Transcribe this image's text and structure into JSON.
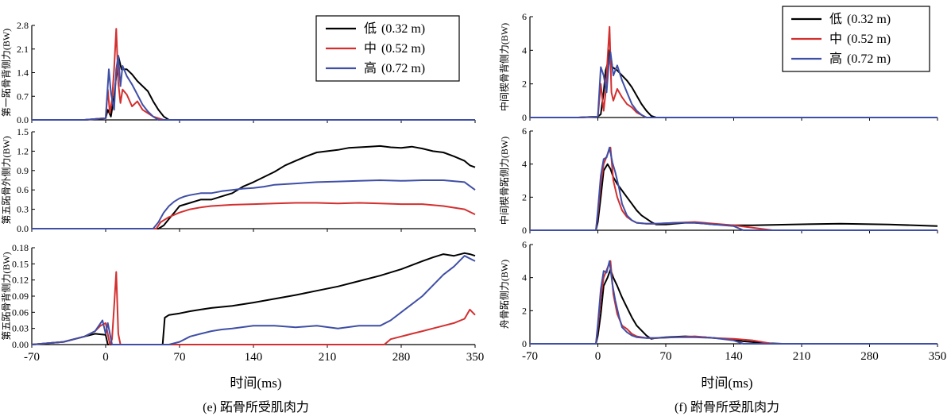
{
  "colors": {
    "低": "#000000",
    "中": "#d32f2f",
    "高": "#3f4fa6"
  },
  "legend": [
    {
      "key": "低",
      "label": "低",
      "sub": "(0.32 m)"
    },
    {
      "key": "中",
      "label": "中",
      "sub": "(0.52 m)"
    },
    {
      "key": "高",
      "label": "高",
      "sub": "(0.72 m)"
    }
  ],
  "xaxis": {
    "label": "时间(ms)",
    "ticks": [
      -70,
      0,
      70,
      140,
      210,
      280,
      350
    ],
    "range": [
      -70,
      350
    ]
  },
  "captions": {
    "left": "(e) 跖骨所受肌肉力",
    "right": "(f) 跗骨所受肌肉力"
  },
  "chart_data": [
    {
      "type": "line",
      "panel": "e1",
      "ylabel": "第一跖骨背侧力(BW)",
      "ylim": [
        0,
        2.8
      ],
      "yticks": [
        "0.0",
        "0.7",
        "1.4",
        "2.1",
        "2.8"
      ],
      "series": [
        {
          "name": "低 (0.32 m)",
          "color_key": "低",
          "x": [
            -70,
            -20,
            0,
            2,
            5,
            8,
            10,
            12,
            15,
            20,
            25,
            30,
            35,
            40,
            45,
            50,
            55,
            60,
            350
          ],
          "y": [
            0,
            0,
            0.05,
            0.3,
            0.1,
            0.7,
            1.3,
            1.9,
            1.5,
            1.5,
            1.35,
            1.15,
            1.0,
            0.85,
            0.55,
            0.3,
            0.1,
            0,
            0
          ]
        },
        {
          "name": "中 (0.52 m)",
          "color_key": "中",
          "x": [
            -70,
            -20,
            0,
            2,
            4,
            6,
            8,
            10,
            12,
            14,
            16,
            20,
            25,
            30,
            35,
            40,
            45,
            50,
            55,
            350
          ],
          "y": [
            0,
            0,
            0.05,
            0.9,
            0.2,
            0.6,
            1.5,
            2.7,
            1.1,
            0.5,
            0.9,
            0.75,
            0.4,
            0.55,
            0.3,
            0.2,
            0.1,
            0.05,
            0,
            0
          ]
        },
        {
          "name": "高 (0.72 m)",
          "color_key": "高",
          "x": [
            -70,
            -20,
            0,
            3,
            5,
            8,
            10,
            12,
            14,
            16,
            20,
            25,
            30,
            35,
            40,
            45,
            50,
            350
          ],
          "y": [
            0,
            0,
            0.05,
            1.5,
            0.8,
            0.3,
            1.5,
            1.9,
            1.0,
            1.6,
            1.3,
            1.05,
            0.75,
            0.45,
            0.25,
            0.1,
            0,
            0
          ]
        }
      ]
    },
    {
      "type": "line",
      "panel": "e5l",
      "ylabel": "第五跖骨外侧力(BW)",
      "ylim": [
        0,
        1.5
      ],
      "yticks": [
        "0.0",
        "0.3",
        "0.6",
        "0.9",
        "1.2",
        "1.5"
      ],
      "series": [
        {
          "name": "低 (0.32 m)",
          "color_key": "低",
          "x": [
            -70,
            50,
            55,
            60,
            65,
            70,
            80,
            90,
            100,
            110,
            120,
            130,
            140,
            150,
            160,
            170,
            180,
            190,
            200,
            210,
            220,
            230,
            240,
            250,
            260,
            270,
            280,
            290,
            300,
            310,
            320,
            330,
            340,
            345,
            350
          ],
          "y": [
            0,
            0,
            0.05,
            0.15,
            0.25,
            0.35,
            0.4,
            0.45,
            0.45,
            0.5,
            0.55,
            0.65,
            0.72,
            0.8,
            0.88,
            0.98,
            1.05,
            1.12,
            1.18,
            1.2,
            1.22,
            1.25,
            1.26,
            1.27,
            1.28,
            1.26,
            1.25,
            1.27,
            1.24,
            1.2,
            1.18,
            1.12,
            1.05,
            0.98,
            0.95
          ]
        },
        {
          "name": "中 (0.52 m)",
          "color_key": "中",
          "x": [
            -70,
            48,
            52,
            60,
            70,
            80,
            90,
            100,
            120,
            140,
            160,
            180,
            200,
            220,
            240,
            260,
            280,
            300,
            320,
            340,
            350
          ],
          "y": [
            0,
            0,
            0.1,
            0.18,
            0.25,
            0.3,
            0.33,
            0.35,
            0.37,
            0.38,
            0.39,
            0.4,
            0.4,
            0.39,
            0.4,
            0.39,
            0.38,
            0.38,
            0.35,
            0.3,
            0.22
          ]
        },
        {
          "name": "高 (0.72 m)",
          "color_key": "高",
          "x": [
            -70,
            45,
            50,
            55,
            60,
            65,
            70,
            75,
            80,
            90,
            100,
            110,
            120,
            130,
            140,
            150,
            160,
            180,
            200,
            220,
            240,
            260,
            280,
            300,
            320,
            340,
            350
          ],
          "y": [
            0,
            0,
            0.1,
            0.25,
            0.35,
            0.42,
            0.47,
            0.5,
            0.52,
            0.55,
            0.55,
            0.58,
            0.6,
            0.62,
            0.63,
            0.65,
            0.68,
            0.7,
            0.72,
            0.73,
            0.74,
            0.75,
            0.74,
            0.75,
            0.75,
            0.72,
            0.6
          ]
        }
      ]
    },
    {
      "type": "line",
      "panel": "e5d",
      "ylabel": "第五跖骨背侧力(BW)",
      "ylim": [
        0,
        0.18
      ],
      "yticks": [
        "0.00",
        "0.03",
        "0.06",
        "0.09",
        "0.12",
        "0.15",
        "0.18"
      ],
      "series": [
        {
          "name": "低 (0.32 m)",
          "color_key": "低",
          "x": [
            -70,
            -40,
            -20,
            -10,
            0,
            2,
            54,
            56,
            60,
            70,
            80,
            90,
            100,
            120,
            140,
            160,
            180,
            200,
            220,
            240,
            260,
            280,
            300,
            310,
            320,
            330,
            340,
            345,
            350
          ],
          "y": [
            0,
            0.005,
            0.015,
            0.02,
            0.018,
            0,
            0,
            0.05,
            0.055,
            0.058,
            0.062,
            0.065,
            0.068,
            0.072,
            0.078,
            0.085,
            0.092,
            0.1,
            0.108,
            0.118,
            0.128,
            0.14,
            0.155,
            0.162,
            0.168,
            0.165,
            0.17,
            0.168,
            0.165
          ]
        },
        {
          "name": "中 (0.52 m)",
          "color_key": "中",
          "x": [
            -70,
            -40,
            -20,
            -10,
            -5,
            0,
            4,
            6,
            8,
            10,
            12,
            14,
            264,
            270,
            280,
            290,
            300,
            310,
            320,
            330,
            340,
            345,
            350
          ],
          "y": [
            0,
            0.005,
            0.015,
            0.025,
            0.035,
            0.04,
            0,
            0.01,
            0.07,
            0.135,
            0.02,
            0,
            0,
            0.01,
            0.015,
            0.02,
            0.025,
            0.03,
            0.035,
            0.04,
            0.048,
            0.065,
            0.055
          ]
        },
        {
          "name": "高 (0.72 m)",
          "color_key": "高",
          "x": [
            -70,
            -40,
            -20,
            -10,
            -3,
            0,
            2,
            6,
            60,
            70,
            80,
            90,
            100,
            110,
            120,
            140,
            160,
            180,
            200,
            220,
            240,
            260,
            270,
            280,
            290,
            300,
            310,
            320,
            330,
            340,
            345,
            350
          ],
          "y": [
            0,
            0.005,
            0.015,
            0.025,
            0.045,
            0.02,
            0.04,
            0,
            0,
            0.005,
            0.015,
            0.02,
            0.025,
            0.028,
            0.03,
            0.035,
            0.035,
            0.032,
            0.035,
            0.03,
            0.035,
            0.035,
            0.045,
            0.06,
            0.075,
            0.09,
            0.11,
            0.13,
            0.145,
            0.165,
            0.16,
            0.155
          ]
        }
      ]
    },
    {
      "type": "line",
      "panel": "f1",
      "ylabel": "中间楔骨背侧力(BW)",
      "ylim": [
        0,
        6
      ],
      "yticks": [
        "0",
        "2",
        "4",
        "6"
      ],
      "series": [
        {
          "name": "低 (0.32 m)",
          "color_key": "低",
          "x": [
            -70,
            -20,
            0,
            3,
            6,
            8,
            10,
            12,
            15,
            20,
            25,
            30,
            35,
            40,
            45,
            50,
            55,
            60,
            350
          ],
          "y": [
            0,
            0,
            0.05,
            0.2,
            1.5,
            2.8,
            3.2,
            4.0,
            3.0,
            2.8,
            2.5,
            2.2,
            1.8,
            1.3,
            0.8,
            0.4,
            0.1,
            0,
            0
          ]
        },
        {
          "name": "中 (0.52 m)",
          "color_key": "中",
          "x": [
            -70,
            -20,
            0,
            3,
            6,
            8,
            10,
            12,
            14,
            16,
            20,
            25,
            30,
            35,
            40,
            45,
            50,
            350
          ],
          "y": [
            0,
            0,
            0.05,
            2.0,
            0.4,
            1.5,
            3.5,
            5.4,
            1.5,
            1.0,
            1.7,
            1.2,
            0.8,
            0.6,
            0.3,
            0.15,
            0,
            0
          ]
        },
        {
          "name": "高 (0.72 m)",
          "color_key": "高",
          "x": [
            -70,
            -20,
            0,
            3,
            6,
            9,
            11,
            13,
            16,
            20,
            25,
            30,
            35,
            40,
            45,
            50,
            350
          ],
          "y": [
            0,
            0,
            0.05,
            3.0,
            2.5,
            1.5,
            3.0,
            3.9,
            2.5,
            3.1,
            2.2,
            1.5,
            0.8,
            0.4,
            0.15,
            0,
            0
          ]
        }
      ]
    },
    {
      "type": "line",
      "panel": "f2",
      "ylabel": "中间楔骨跖侧力(BW)",
      "ylim": [
        0,
        6
      ],
      "yticks": [
        "0",
        "2",
        "4",
        "6"
      ],
      "series": [
        {
          "name": "低 (0.32 m)",
          "color_key": "低",
          "x": [
            -70,
            -2,
            0,
            3,
            6,
            10,
            13,
            16,
            20,
            25,
            30,
            35,
            40,
            45,
            50,
            55,
            60,
            70,
            90,
            100,
            120,
            140,
            160,
            200,
            250,
            300,
            350
          ],
          "y": [
            0,
            0,
            0.5,
            2.0,
            3.6,
            4.0,
            3.7,
            3.2,
            2.8,
            2.4,
            2.0,
            1.6,
            1.2,
            0.9,
            0.7,
            0.5,
            0.35,
            0.35,
            0.45,
            0.45,
            0.35,
            0.3,
            0.3,
            0.35,
            0.4,
            0.35,
            0.25
          ]
        },
        {
          "name": "中 (0.52 m)",
          "color_key": "中",
          "x": [
            -70,
            -2,
            0,
            3,
            6,
            10,
            13,
            16,
            20,
            25,
            30,
            35,
            40,
            50,
            60,
            80,
            100,
            120,
            140,
            160,
            180,
            350
          ],
          "y": [
            0,
            0,
            1.0,
            2.8,
            4.0,
            4.6,
            5.0,
            3.0,
            2.0,
            1.2,
            0.8,
            0.6,
            0.45,
            0.4,
            0.4,
            0.45,
            0.5,
            0.4,
            0.3,
            0.15,
            0,
            0
          ]
        },
        {
          "name": "高 (0.72 m)",
          "color_key": "高",
          "x": [
            -70,
            -2,
            0,
            3,
            6,
            9,
            12,
            15,
            18,
            22,
            25,
            30,
            35,
            40,
            50,
            60,
            80,
            100,
            120,
            140,
            150,
            350
          ],
          "y": [
            0,
            0,
            1.2,
            3.3,
            4.3,
            4.4,
            5.0,
            4.1,
            3.5,
            2.5,
            1.6,
            0.9,
            0.6,
            0.45,
            0.4,
            0.4,
            0.45,
            0.45,
            0.35,
            0.25,
            0,
            0
          ]
        }
      ]
    },
    {
      "type": "line",
      "panel": "f3",
      "ylabel": "舟骨跖侧力(BW)",
      "ylim": [
        0,
        6
      ],
      "yticks": [
        "0",
        "2",
        "4",
        "6"
      ],
      "series": [
        {
          "name": "低 (0.32 m)",
          "color_key": "低",
          "x": [
            -70,
            -2,
            0,
            3,
            6,
            10,
            13,
            16,
            20,
            25,
            30,
            35,
            40,
            45,
            50,
            55,
            60,
            70,
            90,
            110,
            130,
            150,
            170,
            190,
            350
          ],
          "y": [
            0,
            0,
            0.5,
            1.8,
            3.5,
            4.0,
            4.5,
            4.0,
            3.5,
            2.8,
            2.2,
            1.6,
            1.1,
            0.8,
            0.5,
            0.3,
            0.35,
            0.4,
            0.45,
            0.4,
            0.3,
            0.15,
            0.05,
            0,
            0
          ]
        },
        {
          "name": "中 (0.52 m)",
          "color_key": "中",
          "x": [
            -70,
            -2,
            0,
            3,
            6,
            10,
            13,
            16,
            20,
            25,
            30,
            35,
            40,
            45,
            50,
            60,
            80,
            100,
            120,
            140,
            160,
            180,
            350
          ],
          "y": [
            0,
            0,
            1.0,
            2.8,
            4.0,
            4.6,
            5.0,
            3.0,
            1.8,
            1.1,
            0.9,
            0.6,
            0.45,
            0.4,
            0.35,
            0.35,
            0.4,
            0.45,
            0.35,
            0.3,
            0.2,
            0,
            0
          ]
        },
        {
          "name": "高 (0.72 m)",
          "color_key": "高",
          "x": [
            -70,
            -2,
            0,
            3,
            6,
            9,
            12,
            15,
            18,
            22,
            25,
            30,
            35,
            40,
            50,
            60,
            80,
            100,
            120,
            140,
            150,
            350
          ],
          "y": [
            0,
            0,
            1.2,
            3.3,
            4.4,
            4.3,
            5.0,
            3.6,
            2.6,
            1.6,
            1.0,
            0.7,
            0.5,
            0.4,
            0.35,
            0.35,
            0.4,
            0.4,
            0.35,
            0.2,
            0,
            0
          ]
        }
      ]
    }
  ]
}
